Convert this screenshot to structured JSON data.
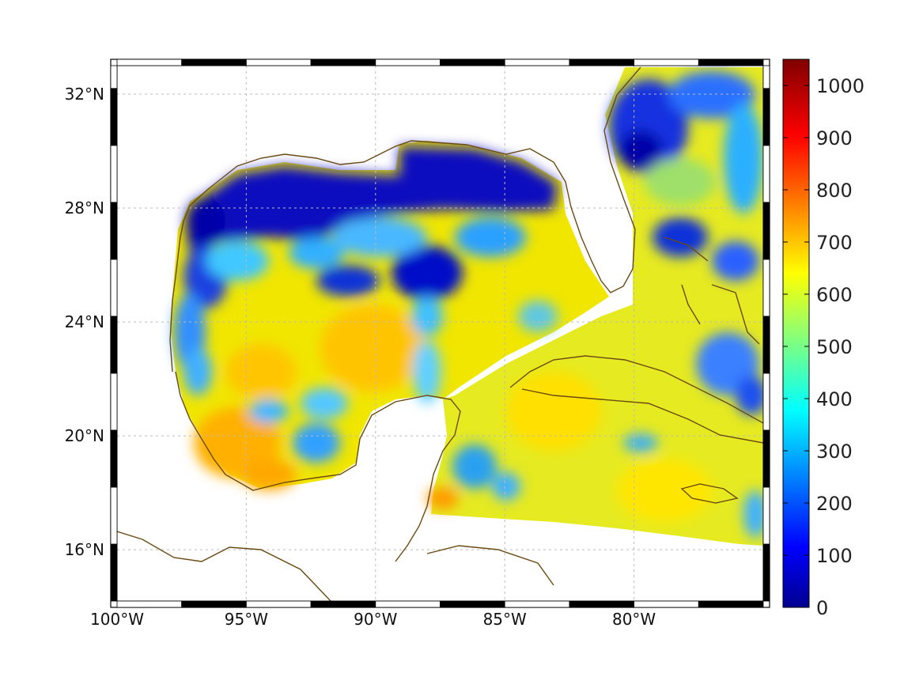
{
  "map": {
    "lon_labels": [
      "100°W",
      "95°W",
      "90°W",
      "85°W",
      "80°W"
    ],
    "lat_labels": [
      "32°N",
      "28°N",
      "24°N",
      "20°N",
      "16°N"
    ],
    "lon_values": [
      -100,
      -95,
      -90,
      -85,
      -80
    ],
    "lat_values": [
      32,
      28,
      24,
      20,
      16
    ],
    "extent": {
      "lon": [
        -100,
        -75
      ],
      "lat": [
        14.2,
        33
      ]
    },
    "coastline_color": "#6b4a12",
    "grid": true,
    "colormap": "jet"
  },
  "colorbar": {
    "min": 0,
    "max": 1050,
    "tick_labels": [
      "1000",
      "900",
      "800",
      "700",
      "600",
      "500",
      "400",
      "300",
      "200",
      "100",
      "0"
    ],
    "tick_values": [
      1000,
      900,
      800,
      700,
      600,
      500,
      400,
      300,
      200,
      100,
      0
    ]
  }
}
